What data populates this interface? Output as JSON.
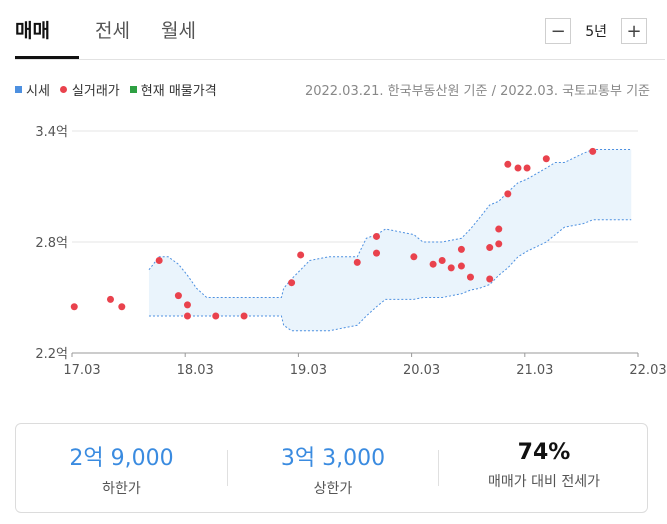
{
  "tabs": [
    {
      "label": "매매",
      "active": true
    },
    {
      "label": "전세",
      "active": false
    },
    {
      "label": "월세",
      "active": false
    }
  ],
  "period": {
    "minus_label": "−",
    "value": "5년",
    "plus_label": "+"
  },
  "legend": [
    {
      "label": "시세",
      "color": "#4d90e0",
      "shape": "square"
    },
    {
      "label": "실거래가",
      "color": "#e9424d",
      "shape": "circle"
    },
    {
      "label": "현재 매물가격",
      "color": "#2ea043",
      "shape": "square"
    }
  ],
  "source": "2022.03.21. 한국부동산원 기준 / 2022.03. 국토교통부 기준",
  "colors": {
    "band_fill": "#eaf4fc",
    "band_line": "#4d90e0",
    "trade_dot": "#e9424d",
    "value_blue": "#3a8be0"
  },
  "chart_data": {
    "type": "scatter",
    "x_ticks": [
      "17.03",
      "18.03",
      "19.03",
      "20.03",
      "21.03",
      "22.03"
    ],
    "y_ticks": [
      "3.4억",
      "2.8억",
      "2.2억"
    ],
    "ylim": [
      2.2,
      3.4
    ],
    "xlim": [
      2017.25,
      2022.25
    ],
    "series": [
      {
        "name": "시세",
        "kind": "band",
        "x": [
          2017.93,
          2018.02,
          2018.1,
          2018.19,
          2018.27,
          2018.35,
          2018.44,
          2019.1,
          2019.12,
          2019.19,
          2019.27,
          2019.35,
          2019.52,
          2019.77,
          2019.85,
          2019.94,
          2020.02,
          2020.27,
          2020.35,
          2020.52,
          2020.69,
          2020.77,
          2020.85,
          2020.94,
          2021.02,
          2021.1,
          2021.19,
          2021.27,
          2021.44,
          2021.52,
          2021.6,
          2021.77,
          2021.85,
          2022.19
        ],
        "upper": [
          2.65,
          2.72,
          2.72,
          2.68,
          2.62,
          2.55,
          2.5,
          2.5,
          2.55,
          2.6,
          2.65,
          2.7,
          2.72,
          2.72,
          2.82,
          2.84,
          2.87,
          2.84,
          2.8,
          2.8,
          2.82,
          2.87,
          2.93,
          3.0,
          3.02,
          3.07,
          3.12,
          3.14,
          3.2,
          3.23,
          3.23,
          3.28,
          3.3,
          3.3
        ],
        "lower": [
          2.4,
          2.4,
          2.4,
          2.4,
          2.4,
          2.4,
          2.4,
          2.4,
          2.35,
          2.32,
          2.32,
          2.32,
          2.32,
          2.35,
          2.4,
          2.45,
          2.49,
          2.49,
          2.5,
          2.5,
          2.52,
          2.54,
          2.55,
          2.57,
          2.62,
          2.66,
          2.72,
          2.75,
          2.8,
          2.84,
          2.88,
          2.9,
          2.92,
          2.92
        ]
      },
      {
        "name": "실거래가",
        "kind": "points",
        "points": [
          [
            2017.27,
            2.45
          ],
          [
            2017.59,
            2.49
          ],
          [
            2017.69,
            2.45
          ],
          [
            2018.02,
            2.7
          ],
          [
            2018.19,
            2.51
          ],
          [
            2018.27,
            2.4
          ],
          [
            2018.27,
            2.46
          ],
          [
            2018.52,
            2.4
          ],
          [
            2018.77,
            2.4
          ],
          [
            2019.19,
            2.58
          ],
          [
            2019.27,
            2.73
          ],
          [
            2019.77,
            2.69
          ],
          [
            2019.94,
            2.74
          ],
          [
            2019.94,
            2.83
          ],
          [
            2020.27,
            2.72
          ],
          [
            2020.44,
            2.68
          ],
          [
            2020.52,
            2.7
          ],
          [
            2020.6,
            2.66
          ],
          [
            2020.69,
            2.67
          ],
          [
            2020.69,
            2.76
          ],
          [
            2020.77,
            2.61
          ],
          [
            2020.94,
            2.77
          ],
          [
            2020.94,
            2.6
          ],
          [
            2021.02,
            2.79
          ],
          [
            2021.02,
            2.87
          ],
          [
            2021.1,
            3.06
          ],
          [
            2021.1,
            3.22
          ],
          [
            2021.19,
            3.2
          ],
          [
            2021.27,
            3.2
          ],
          [
            2021.44,
            3.25
          ],
          [
            2021.85,
            3.29
          ]
        ]
      }
    ]
  },
  "summary": {
    "low": {
      "value": "2억 9,000",
      "label": "하한가"
    },
    "high": {
      "value": "3억 3,000",
      "label": "상한가"
    },
    "ratio": {
      "value": "74%",
      "label": "매매가 대비 전세가"
    }
  }
}
